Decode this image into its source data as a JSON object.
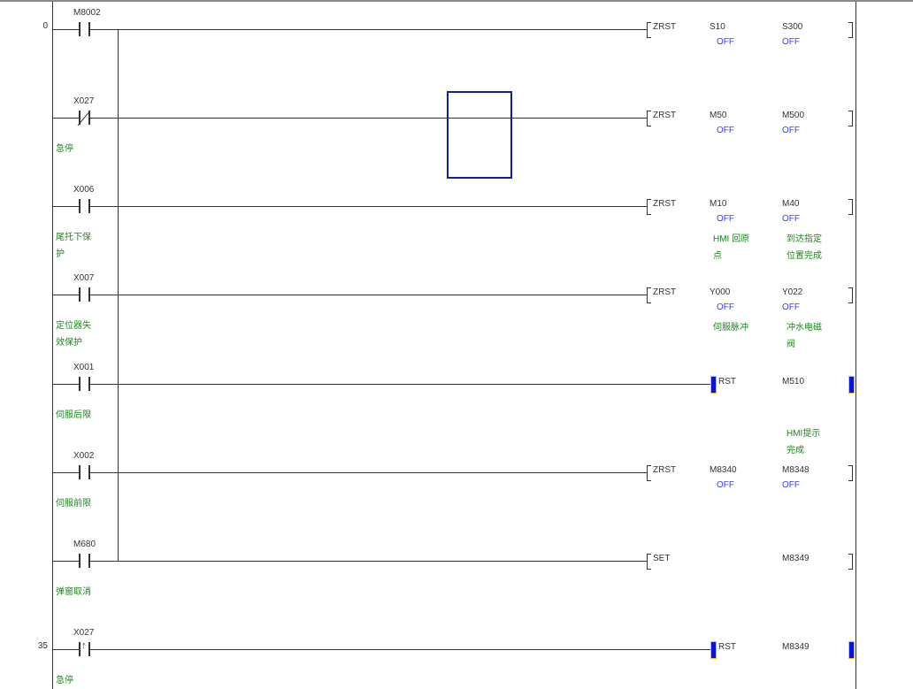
{
  "rungs": [
    {
      "step": "0",
      "contact": {
        "label": "M8002",
        "type": "no"
      },
      "comment": [],
      "instr": "ZRST",
      "style": "bracket",
      "ops": [
        {
          "name": "S10",
          "status": "OFF",
          "comment": []
        },
        {
          "name": "S300",
          "status": "OFF",
          "comment": []
        }
      ]
    },
    {
      "step": "",
      "contact": {
        "label": "X027",
        "type": "nc"
      },
      "comment": [
        "急停"
      ],
      "instr": "ZRST",
      "style": "bracket",
      "ops": [
        {
          "name": "M50",
          "status": "OFF",
          "comment": []
        },
        {
          "name": "M500",
          "status": "OFF",
          "comment": []
        }
      ]
    },
    {
      "step": "",
      "contact": {
        "label": "X006",
        "type": "no"
      },
      "comment": [
        "尾托下保",
        "护"
      ],
      "instr": "ZRST",
      "style": "bracket",
      "ops": [
        {
          "name": "M10",
          "status": "OFF",
          "comment": [
            "HMI 回原",
            "点"
          ]
        },
        {
          "name": "M40",
          "status": "OFF",
          "comment": [
            "到达指定",
            "位置完成"
          ]
        }
      ]
    },
    {
      "step": "",
      "contact": {
        "label": "X007",
        "type": "no"
      },
      "comment": [
        "定位器失",
        "效保护"
      ],
      "instr": "ZRST",
      "style": "bracket",
      "ops": [
        {
          "name": "Y000",
          "status": "OFF",
          "comment": [
            "伺服脉冲"
          ]
        },
        {
          "name": "Y022",
          "status": "OFF",
          "comment": [
            "冲水电磁",
            "阀"
          ]
        }
      ]
    },
    {
      "step": "",
      "contact": {
        "label": "X001",
        "type": "no"
      },
      "comment": [
        "伺服后限"
      ],
      "instr": "RST",
      "style": "coil",
      "ops": [
        {
          "name": "",
          "status": "",
          "comment": []
        },
        {
          "name": "M510",
          "status": "",
          "comment": [
            "",
            "HMI提示",
            "完成"
          ]
        }
      ]
    },
    {
      "step": "",
      "contact": {
        "label": "X002",
        "type": "no"
      },
      "comment": [
        "伺服前限"
      ],
      "instr": "ZRST",
      "style": "bracket",
      "ops": [
        {
          "name": "M8340",
          "status": "OFF",
          "comment": []
        },
        {
          "name": "M8348",
          "status": "OFF",
          "comment": []
        }
      ]
    },
    {
      "step": "",
      "contact": {
        "label": "M680",
        "type": "no"
      },
      "comment": [
        "弹窗取消"
      ],
      "instr": "SET",
      "style": "bracket",
      "ops": [
        {
          "name": "",
          "status": "",
          "comment": []
        },
        {
          "name": "M8349",
          "status": "",
          "comment": []
        }
      ]
    },
    {
      "step": "35",
      "contact": {
        "label": "X027",
        "type": "rise"
      },
      "comment": [
        "急停"
      ],
      "instr": "RST",
      "style": "coil",
      "ops": [
        {
          "name": "",
          "status": "",
          "comment": []
        },
        {
          "name": "M8349",
          "status": "",
          "comment": []
        }
      ]
    }
  ]
}
